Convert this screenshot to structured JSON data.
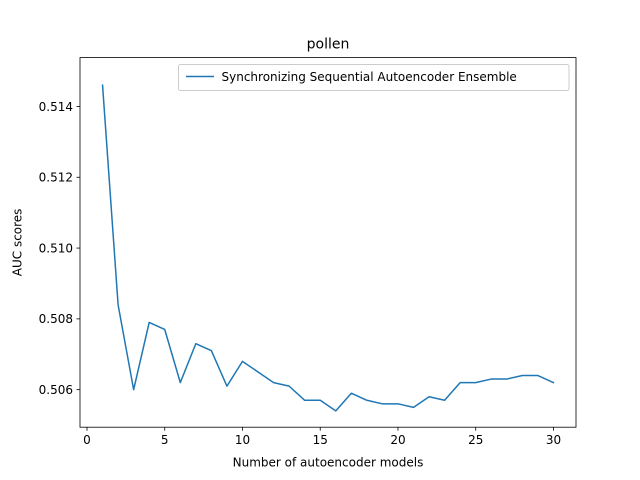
{
  "chart_data": {
    "type": "line",
    "title": "pollen",
    "xlabel": "Number of autoencoder models",
    "ylabel": "AUC scores",
    "xlim": [
      -0.45,
      31.45
    ],
    "ylim": [
      0.50494,
      0.51538
    ],
    "xticks": [
      0,
      5,
      10,
      15,
      20,
      25,
      30
    ],
    "xtick_labels": [
      "0",
      "5",
      "10",
      "15",
      "20",
      "25",
      "30"
    ],
    "yticks": [
      0.506,
      0.508,
      0.51,
      0.512,
      0.514
    ],
    "ytick_labels": [
      "0.506",
      "0.508",
      "0.510",
      "0.512",
      "0.514"
    ],
    "grid": false,
    "legend_position": "top-right",
    "series": [
      {
        "name": "Synchronizing Sequential Autoencoder Ensemble",
        "color": "#1f77b4",
        "x": [
          1,
          2,
          3,
          4,
          5,
          6,
          7,
          8,
          9,
          10,
          11,
          12,
          13,
          14,
          15,
          16,
          17,
          18,
          19,
          20,
          21,
          22,
          23,
          24,
          25,
          26,
          27,
          28,
          29,
          30
        ],
        "y": [
          0.5146,
          0.5084,
          0.506,
          0.5079,
          0.5077,
          0.5062,
          0.5073,
          0.5071,
          0.5061,
          0.5068,
          0.5065,
          0.5062,
          0.5061,
          0.5057,
          0.5057,
          0.5054,
          0.5059,
          0.5057,
          0.5056,
          0.5056,
          0.5055,
          0.5058,
          0.5057,
          0.5062,
          0.5062,
          0.5063,
          0.5063,
          0.5064,
          0.5064,
          0.5062
        ]
      }
    ]
  }
}
